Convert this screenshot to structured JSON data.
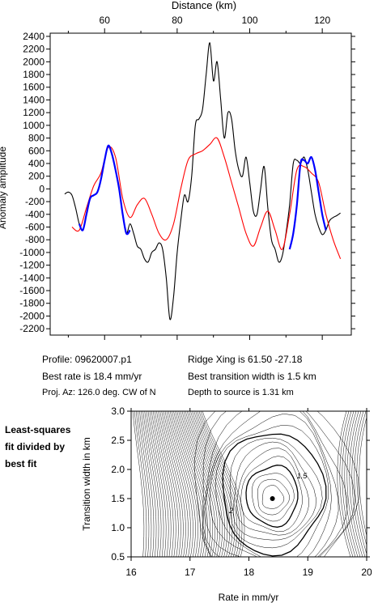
{
  "chart_data": [
    {
      "type": "line",
      "xlabel": "Distance (km)",
      "ylabel": "Anomaly amplitude",
      "xlim": [
        45,
        128
      ],
      "ylim": [
        -2300,
        2450
      ],
      "x_ticks": [
        60,
        80,
        100,
        120
      ],
      "y_ticks": [
        -2200,
        -2000,
        -1800,
        -1600,
        -1400,
        -1200,
        -1000,
        -800,
        -600,
        -400,
        -200,
        0,
        200,
        400,
        600,
        800,
        1000,
        1200,
        1400,
        1600,
        1800,
        2000,
        2200,
        2400
      ],
      "series": [
        {
          "color": "#000000",
          "x": [
            49,
            50,
            51,
            52,
            53,
            54,
            55,
            56,
            57,
            58,
            59,
            60,
            61,
            62,
            63,
            64,
            65,
            66,
            67,
            68,
            69,
            70,
            71,
            72,
            73,
            74,
            75,
            76,
            77,
            78,
            79,
            80,
            81,
            82,
            83,
            84,
            85,
            86,
            87,
            88,
            89,
            90,
            91,
            92,
            93,
            94,
            95,
            96,
            97,
            98,
            99,
            100,
            101,
            102,
            103,
            104,
            105,
            106,
            107,
            108,
            109,
            110,
            111,
            112,
            113,
            114,
            115,
            116,
            117,
            118,
            119,
            120,
            121,
            122,
            123,
            124,
            125
          ],
          "y": [
            -80,
            -50,
            -100,
            -300,
            -550,
            -650,
            -400,
            -150,
            -100,
            -50,
            150,
            450,
            680,
            550,
            300,
            0,
            -400,
            -700,
            -550,
            -700,
            -900,
            -950,
            -1100,
            -1150,
            -1000,
            -950,
            -850,
            -950,
            -1400,
            -2050,
            -1700,
            -1000,
            -500,
            -100,
            -200,
            200,
            1000,
            1100,
            1250,
            1800,
            2300,
            1700,
            2000,
            1400,
            800,
            1200,
            1100,
            600,
            300,
            200,
            500,
            100,
            -350,
            -400,
            0,
            350,
            -300,
            -800,
            -950,
            -1150,
            -1050,
            -700,
            -250,
            400,
            450,
            400,
            500,
            300,
            -50,
            -400,
            -600,
            -720,
            -650,
            -500,
            -450,
            -420,
            -380
          ]
        },
        {
          "color": "#ff0000",
          "x": [
            51,
            53,
            55,
            57,
            59,
            61,
            63,
            65,
            67,
            69,
            71,
            73,
            75,
            77,
            79,
            81,
            83,
            85,
            87,
            89,
            91,
            93,
            95,
            97,
            99,
            101,
            103,
            105,
            107,
            109,
            111,
            113,
            115,
            117,
            119,
            121,
            123,
            125
          ],
          "y": [
            -600,
            -650,
            -300,
            50,
            250,
            650,
            500,
            -150,
            -450,
            -250,
            -150,
            -400,
            -700,
            -800,
            -550,
            0,
            450,
            550,
            600,
            700,
            800,
            500,
            100,
            -300,
            -700,
            -900,
            -600,
            -350,
            -650,
            -950,
            -400,
            300,
            350,
            250,
            100,
            -400,
            -800,
            -1100
          ]
        },
        {
          "color": "#0000ff",
          "x": [
            53,
            54,
            55,
            56,
            57,
            58,
            59,
            60,
            61,
            62,
            63,
            64,
            65,
            66,
            67
          ],
          "y": [
            -550,
            -650,
            -400,
            -150,
            -100,
            -50,
            150,
            450,
            680,
            550,
            300,
            0,
            -400,
            -700,
            -650
          ]
        },
        {
          "color": "#0000ff",
          "x": [
            111,
            112,
            113,
            114,
            115,
            116,
            117,
            118,
            119,
            120,
            121
          ],
          "y": [
            -950,
            -700,
            -250,
            400,
            450,
            400,
            500,
            300,
            -50,
            -400,
            -650
          ]
        }
      ]
    },
    {
      "type": "heatmap",
      "xlabel": "Rate in mm/yr",
      "ylabel": "Transition width in km",
      "xlim": [
        16,
        20
      ],
      "ylim": [
        0.5,
        3.0
      ],
      "x_ticks": [
        16,
        17,
        18,
        19,
        20
      ],
      "y_ticks": [
        0.5,
        1.0,
        1.5,
        2.0,
        2.5,
        3.0
      ],
      "best_fit_point": {
        "x": 18.4,
        "y": 1.5
      },
      "contour_labels": [
        {
          "text": "1.5",
          "x": 18.9,
          "y": 1.85
        },
        {
          "text": "2",
          "x": 17.7,
          "y": 1.25
        }
      ]
    }
  ],
  "info": {
    "profile": "Profile: 09620007.p1",
    "ridge_xing": "Ridge Xing is 61.50 -27.18",
    "best_rate": "Best rate is 18.4 mm/yr",
    "best_transition": "Best transition width is 1.5 km",
    "proj_az": "Proj. Az: 126.0 deg. CW of N",
    "depth": "Depth to source is    1.31 km"
  },
  "side_label": [
    "Least-squares",
    "fit divided by",
    "best fit"
  ]
}
